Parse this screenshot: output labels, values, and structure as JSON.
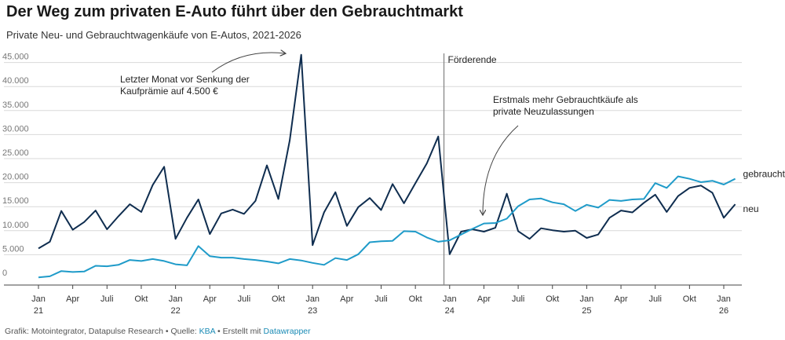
{
  "title": "Der Weg zum privaten E-Auto führt über den Gebrauchtmarkt",
  "subtitle": "Private Neu- und Gebrauchtwagenkäufe von E-Autos, 2021-2026",
  "footer": {
    "prefix": "Grafik: Motointegrator, Datapulse Research • Quelle: ",
    "source_link": "KBA",
    "middle": " • Erstellt mit ",
    "tool_link": "Datawrapper"
  },
  "colors": {
    "neu": "#0f2d4f",
    "gebraucht": "#1f9bc9",
    "marker": "#888888",
    "grid": "#d9d9d9"
  },
  "chart_data": {
    "type": "line",
    "x_unit": "month",
    "x_start": "2021-01",
    "x_end": "2026-02",
    "x_tick_labels": [
      {
        "month": "2021-01",
        "label": "Jan",
        "year": "21"
      },
      {
        "month": "2021-04",
        "label": "Apr",
        "year": ""
      },
      {
        "month": "2021-07",
        "label": "Juli",
        "year": ""
      },
      {
        "month": "2021-10",
        "label": "Okt",
        "year": ""
      },
      {
        "month": "2022-01",
        "label": "Jan",
        "year": "22"
      },
      {
        "month": "2022-04",
        "label": "Apr",
        "year": ""
      },
      {
        "month": "2022-07",
        "label": "Juli",
        "year": ""
      },
      {
        "month": "2022-10",
        "label": "Okt",
        "year": ""
      },
      {
        "month": "2023-01",
        "label": "Jan",
        "year": "23"
      },
      {
        "month": "2023-04",
        "label": "Apr",
        "year": ""
      },
      {
        "month": "2023-07",
        "label": "Juli",
        "year": ""
      },
      {
        "month": "2023-10",
        "label": "Okt",
        "year": ""
      },
      {
        "month": "2024-01",
        "label": "Jan",
        "year": "24"
      },
      {
        "month": "2024-04",
        "label": "Apr",
        "year": ""
      },
      {
        "month": "2024-07",
        "label": "Juli",
        "year": ""
      },
      {
        "month": "2024-10",
        "label": "Okt",
        "year": ""
      },
      {
        "month": "2025-01",
        "label": "Jan",
        "year": "25"
      },
      {
        "month": "2025-04",
        "label": "Apr",
        "year": ""
      },
      {
        "month": "2025-07",
        "label": "Juli",
        "year": ""
      },
      {
        "month": "2025-10",
        "label": "Okt",
        "year": ""
      },
      {
        "month": "2026-01",
        "label": "Jan",
        "year": "26"
      }
    ],
    "y_ticks": [
      0,
      5000,
      10000,
      15000,
      20000,
      25000,
      30000,
      35000,
      40000,
      45000
    ],
    "y_tick_labels": [
      "0",
      "5.000",
      "10.000",
      "15.000",
      "20.000",
      "25.000",
      "30.000",
      "35.000",
      "40.000",
      "45.000"
    ],
    "ylim": [
      0,
      48000
    ],
    "grid": true,
    "series": [
      {
        "name": "neu",
        "color": "#0f2d4f",
        "values": [
          6300,
          7700,
          14100,
          10200,
          11800,
          14200,
          10300,
          13000,
          15500,
          13900,
          19500,
          23300,
          8300,
          12700,
          16500,
          9300,
          13600,
          14400,
          13500,
          16200,
          23600,
          16600,
          28800,
          46600,
          7000,
          13800,
          18000,
          11000,
          14900,
          16800,
          14300,
          19700,
          15700,
          19900,
          24000,
          29600,
          5100,
          9800,
          10300,
          9800,
          10600,
          17700,
          9900,
          8300,
          10500,
          10100,
          9800,
          10000,
          8500,
          9200,
          12700,
          14200,
          13800,
          15800,
          17500,
          13900,
          17200,
          18900,
          19400,
          17900,
          12700,
          15500
        ]
      },
      {
        "name": "gebraucht",
        "color": "#1f9bc9",
        "values": [
          300,
          500,
          1600,
          1400,
          1500,
          2700,
          2600,
          2900,
          3900,
          3700,
          4100,
          3700,
          3000,
          2800,
          6800,
          4700,
          4400,
          4400,
          4100,
          3900,
          3600,
          3200,
          4100,
          3800,
          3300,
          2900,
          4300,
          3900,
          5100,
          7600,
          7800,
          7900,
          9900,
          9800,
          8600,
          7700,
          8000,
          9200,
          10400,
          11500,
          11600,
          12500,
          15100,
          16500,
          16700,
          15900,
          15500,
          14100,
          15400,
          14800,
          16400,
          16200,
          16500,
          16600,
          19900,
          18900,
          21300,
          20800,
          20100,
          20400,
          19600,
          20800
        ]
      }
    ],
    "vline": {
      "month": "2023-12",
      "label": "Förderende"
    },
    "annotations": [
      {
        "text_lines": [
          "Letzter Monat vor Senkung der",
          "Kaufprämie auf 4.500 €"
        ]
      },
      {
        "text_lines": [
          "Erstmals mehr Gebrauchtkäufe als",
          "private Neuzulassungen"
        ]
      }
    ],
    "legend_placement": "inline-right"
  }
}
